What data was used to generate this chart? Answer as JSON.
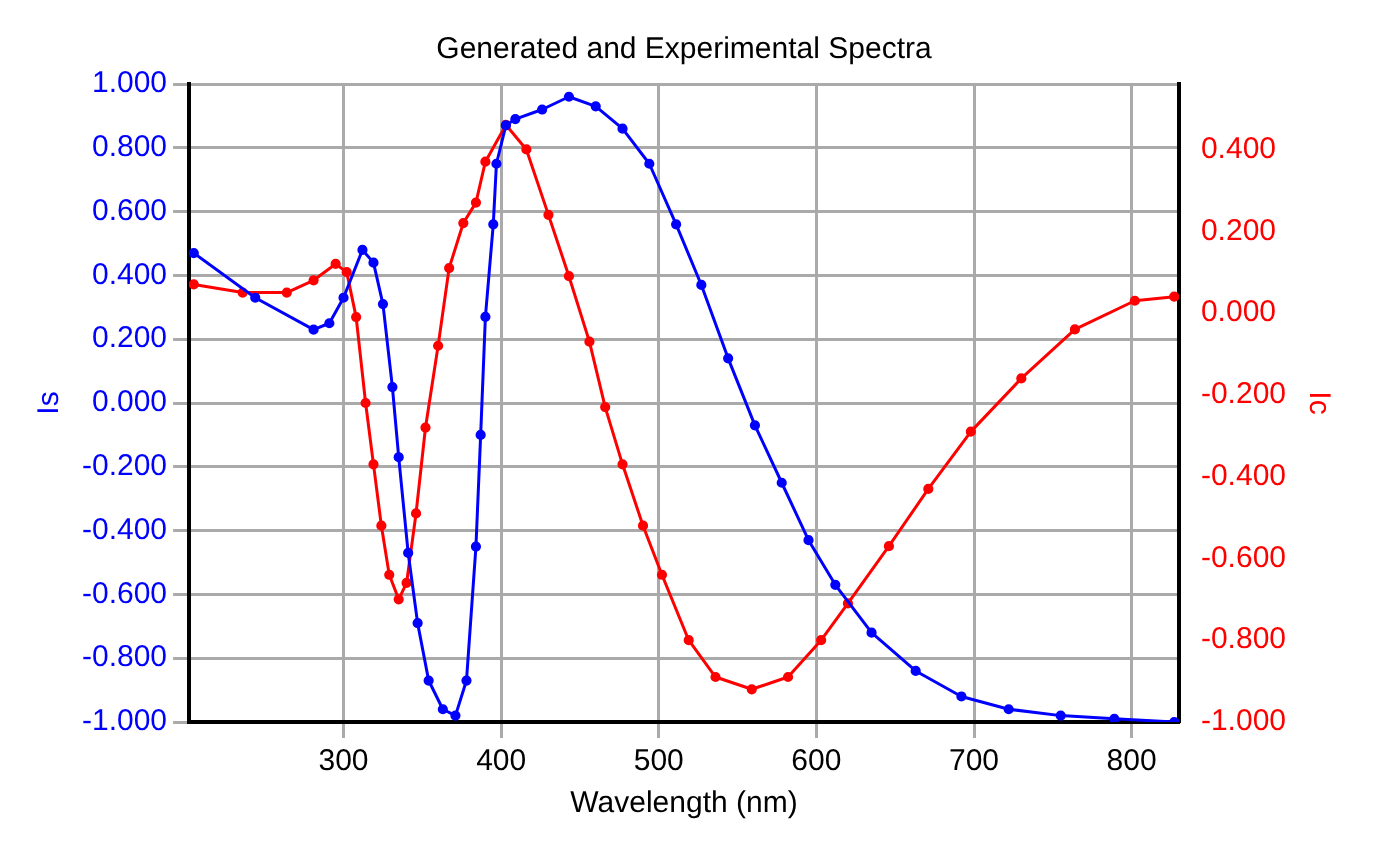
{
  "chart_data": {
    "type": "line",
    "title": "Generated and Experimental Spectra",
    "xlabel": "Wavelength (nm)",
    "ylabel": "Is",
    "y2label": "Ic",
    "xlim": [
      202,
      830
    ],
    "xticks": [
      300,
      400,
      500,
      600,
      700,
      800
    ],
    "ylim": [
      -1,
      1
    ],
    "yticks": [
      {
        "value": -1,
        "label": "-1.000"
      },
      {
        "value": -0.8,
        "label": "-0.800"
      },
      {
        "value": -0.6,
        "label": "-0.600"
      },
      {
        "value": -0.4,
        "label": "-0.400"
      },
      {
        "value": -0.2,
        "label": "-0.200"
      },
      {
        "value": 0,
        "label": "0.000"
      },
      {
        "value": 0.2,
        "label": "0.200"
      },
      {
        "value": 0.4,
        "label": "0.400"
      },
      {
        "value": 0.6,
        "label": "0.600"
      },
      {
        "value": 0.8,
        "label": "0.800"
      },
      {
        "value": 1,
        "label": "1.000"
      }
    ],
    "y2lim": [
      -1,
      0.56
    ],
    "y2ticks": [
      {
        "value": -1,
        "label": "-1.000"
      },
      {
        "value": -0.8,
        "label": "-0.800"
      },
      {
        "value": -0.6,
        "label": "-0.600"
      },
      {
        "value": -0.4,
        "label": "-0.400"
      },
      {
        "value": -0.2,
        "label": "-0.200"
      },
      {
        "value": 0,
        "label": "0.000"
      },
      {
        "value": 0.2,
        "label": "0.200"
      },
      {
        "value": 0.4,
        "label": "0.400"
      }
    ],
    "grid": true,
    "marker": "circle",
    "line_style": "solid",
    "series": [
      {
        "color": "#0000ff",
        "axis": "y",
        "x": [
          205,
          244,
          281,
          291,
          300,
          312,
          319,
          325,
          331,
          335,
          341,
          347,
          354,
          363,
          371,
          378,
          384,
          387,
          390,
          395,
          397,
          403,
          409,
          426,
          443,
          460,
          477,
          494,
          511,
          527,
          544,
          561,
          578,
          595,
          612,
          635,
          663,
          692,
          722,
          755,
          789,
          827
        ],
        "values": [
          0.47,
          0.33,
          0.23,
          0.25,
          0.33,
          0.48,
          0.44,
          0.31,
          0.05,
          -0.17,
          -0.47,
          -0.69,
          -0.87,
          -0.96,
          -0.98,
          -0.87,
          -0.45,
          -0.1,
          0.27,
          0.56,
          0.75,
          0.87,
          0.89,
          0.92,
          0.96,
          0.93,
          0.86,
          0.75,
          0.56,
          0.37,
          0.14,
          -0.07,
          -0.25,
          -0.43,
          -0.57,
          -0.72,
          -0.84,
          -0.92,
          -0.96,
          -0.98,
          -0.99,
          -1.0
        ]
      },
      {
        "color": "#ff0000",
        "axis": "y2",
        "x": [
          205,
          236,
          264,
          281,
          295,
          302,
          308,
          314,
          319,
          324,
          329,
          335,
          340,
          346,
          352,
          360,
          367,
          376,
          384,
          390,
          403,
          416,
          430,
          443,
          456,
          466,
          477,
          490,
          502,
          519,
          536,
          559,
          582,
          603,
          620,
          646,
          671,
          698,
          730,
          764,
          802,
          827
        ],
        "values": [
          0.07,
          0.05,
          0.05,
          0.08,
          0.12,
          0.1,
          -0.01,
          -0.22,
          -0.37,
          -0.52,
          -0.64,
          -0.7,
          -0.66,
          -0.49,
          -0.28,
          -0.08,
          0.11,
          0.22,
          0.27,
          0.37,
          0.46,
          0.4,
          0.24,
          0.09,
          -0.07,
          -0.23,
          -0.37,
          -0.52,
          -0.64,
          -0.8,
          -0.89,
          -0.92,
          -0.89,
          -0.8,
          -0.71,
          -0.57,
          -0.43,
          -0.29,
          -0.16,
          -0.04,
          0.03,
          0.04
        ]
      }
    ]
  }
}
